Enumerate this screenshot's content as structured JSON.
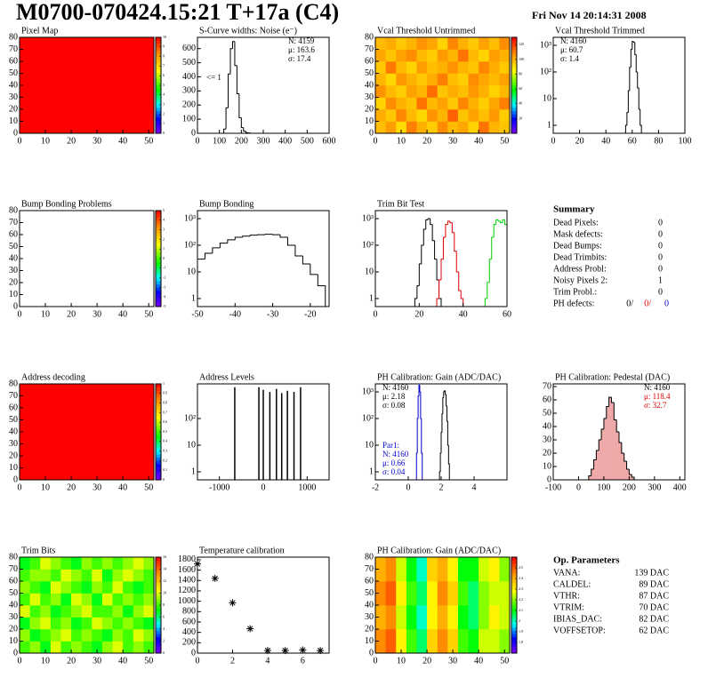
{
  "header": {
    "title": "M0700-070424.15:21 T+17a (C4)",
    "date": "Fri Nov 14 20:14:31 2008"
  },
  "chart_data": [
    {
      "type": "heatmap",
      "title": "Pixel Map",
      "xlim": [
        0,
        52
      ],
      "ylim": [
        0,
        80
      ],
      "xticks": [
        0,
        10,
        20,
        30,
        40,
        50
      ],
      "yticks": [
        0,
        10,
        20,
        30,
        40,
        50,
        60,
        70,
        80
      ],
      "zlim": [
        0,
        10
      ],
      "zticks": [
        0,
        1,
        2,
        3,
        4,
        5,
        6,
        7,
        8,
        9,
        10
      ],
      "z": [
        [
          10
        ]
      ]
    },
    {
      "type": "histogram",
      "title": "S-Curve widths: Noise (e⁻)",
      "xlim": [
        0,
        600
      ],
      "ylim": [
        0,
        680
      ],
      "xticks": [
        0,
        100,
        200,
        300,
        400,
        500,
        600
      ],
      "yticks": [
        0,
        100,
        200,
        300,
        400,
        500,
        600
      ],
      "color": "#000000",
      "bins": [
        120,
        130,
        140,
        150,
        160,
        170,
        180,
        190,
        200,
        210,
        220,
        230,
        240
      ],
      "values": [
        30,
        180,
        420,
        600,
        650,
        480,
        280,
        110,
        40,
        15,
        5,
        2
      ],
      "annotation": "<= 1",
      "stats": [
        {
          "corner": "top-right",
          "color": "#000000",
          "lines": [
            "N: 4159",
            "μ: 163.6",
            "σ: 17.4"
          ]
        }
      ]
    },
    {
      "type": "heatmap",
      "title": "Vcal Threshold Untrimmed",
      "xlim": [
        0,
        52
      ],
      "ylim": [
        0,
        80
      ],
      "xticks": [
        0,
        10,
        20,
        30,
        40,
        50
      ],
      "yticks": [
        0,
        10,
        20,
        30,
        40,
        50,
        60,
        70,
        80
      ],
      "zlim": [
        0,
        130
      ],
      "zticks": [
        20,
        40,
        60,
        80,
        100,
        120
      ],
      "z": [
        [
          98,
          105,
          92,
          110,
          101,
          95,
          108,
          99,
          103,
          94,
          112,
          100,
          97
        ],
        [
          102,
          96,
          109,
          99,
          93,
          107,
          100,
          115,
          97,
          104,
          98,
          106,
          95
        ],
        [
          94,
          108,
          101,
          97,
          112,
          99,
          104,
          96,
          109,
          101,
          95,
          103,
          110
        ],
        [
          107,
          99,
          95,
          104,
          100,
          113,
          97,
          102,
          98,
          106,
          101,
          94,
          99
        ],
        [
          100,
          93,
          106,
          101,
          96,
          102,
          110,
          98,
          95,
          108,
          103,
          99,
          104
        ],
        [
          96,
          111,
          99,
          94,
          105,
          98,
          101,
          107,
          100,
          97,
          109,
          102,
          96
        ],
        [
          103,
          97,
          104,
          108,
          99,
          95,
          106,
          100,
          112,
          99,
          94,
          105,
          101
        ],
        [
          99,
          102,
          96,
          100,
          107,
          103,
          94,
          109,
          101,
          96,
          104,
          98,
          108
        ]
      ]
    },
    {
      "type": "histogram",
      "title": "Vcal Threshold Trimmed",
      "log_y": true,
      "xlim": [
        0,
        100
      ],
      "ylim": [
        0.5,
        2000
      ],
      "xticks": [
        0,
        20,
        40,
        60,
        80,
        100
      ],
      "yticks": [
        1,
        10,
        {
          "value": 100,
          "label": "10²"
        },
        {
          "value": 1000,
          "label": "10³"
        }
      ],
      "color": "#000000",
      "bins": [
        55,
        56,
        57,
        58,
        59,
        60,
        61,
        62,
        63,
        64,
        65,
        66,
        67
      ],
      "values": [
        1,
        3,
        20,
        150,
        700,
        1400,
        1300,
        450,
        100,
        25,
        4,
        1
      ],
      "stats": [
        {
          "corner": "top-left",
          "color": "#000000",
          "lines": [
            "N: 4160",
            "μ: 60.7",
            "σ:  1.4"
          ]
        }
      ]
    },
    {
      "type": "heatmap",
      "title": "Bump Bonding Problems",
      "xlim": [
        0,
        52
      ],
      "ylim": [
        0,
        80
      ],
      "xticks": [
        0,
        10,
        20,
        30,
        40,
        50
      ],
      "yticks": [
        0,
        10,
        20,
        30,
        40,
        50,
        60,
        70,
        80
      ],
      "zlim": [
        -5,
        5
      ],
      "zticks": [
        -5,
        -4,
        -3,
        -2,
        -1,
        0,
        1,
        2,
        3,
        4,
        5
      ],
      "z": []
    },
    {
      "type": "histogram",
      "title": "Bump Bonding",
      "log_y": true,
      "xlim": [
        -50,
        -15
      ],
      "ylim": [
        0.5,
        2000
      ],
      "xticks": [
        -50,
        -40,
        -30,
        -20
      ],
      "yticks": [
        1,
        10,
        {
          "value": 100,
          "label": "10²"
        },
        {
          "value": 1000,
          "label": "10³"
        }
      ],
      "color": "#000000",
      "bins": [
        -50,
        -48,
        -46,
        -44,
        -42,
        -40,
        -38,
        -36,
        -34,
        -32,
        -30,
        -28,
        -26,
        -24,
        -22,
        -20,
        -18,
        -16
      ],
      "values": [
        30,
        50,
        80,
        120,
        160,
        200,
        220,
        240,
        250,
        260,
        250,
        200,
        100,
        40,
        20,
        8,
        3
      ]
    },
    {
      "type": "histogram",
      "title": "Trim Bit Test",
      "log_y": true,
      "xlim": [
        0,
        60
      ],
      "ylim": [
        0.5,
        2000
      ],
      "xticks": [
        0,
        20,
        40,
        60
      ],
      "yticks": [
        1,
        10,
        {
          "value": 100,
          "label": "10²"
        },
        {
          "value": 1000,
          "label": "10³"
        }
      ],
      "series": [
        {
          "color": "#000000",
          "bins": [
            18,
            19,
            20,
            21,
            22,
            23,
            24,
            25,
            26,
            27,
            28,
            29,
            30
          ],
          "values": [
            1,
            3,
            20,
            100,
            400,
            900,
            1000,
            600,
            150,
            30,
            5,
            1
          ]
        },
        {
          "color": "#dd0000",
          "bins": [
            28,
            29,
            30,
            31,
            32,
            33,
            34,
            35,
            36,
            37,
            38,
            39,
            40
          ],
          "values": [
            1,
            5,
            30,
            200,
            600,
            800,
            700,
            300,
            60,
            10,
            2,
            1
          ]
        },
        {
          "color": "#00cc00",
          "bins": [
            50,
            51,
            52,
            53,
            54,
            55,
            56,
            57,
            58,
            59,
            60
          ],
          "values": [
            1,
            4,
            30,
            200,
            600,
            900,
            800,
            700,
            900,
            600
          ]
        }
      ]
    },
    {
      "type": "heatmap",
      "title": "Address decoding",
      "xlim": [
        0,
        52
      ],
      "ylim": [
        0,
        80
      ],
      "xticks": [
        0,
        10,
        20,
        30,
        40,
        50
      ],
      "yticks": [
        0,
        10,
        20,
        30,
        40,
        50,
        60,
        70,
        80
      ],
      "zlim": [
        0,
        1
      ],
      "zticks": [
        0,
        0.1,
        0.2,
        0.3,
        0.4,
        0.5,
        0.6,
        0.7,
        0.8,
        0.9,
        1
      ],
      "z": [
        [
          1
        ]
      ]
    },
    {
      "type": "needle",
      "title": "Address Levels",
      "log_y": true,
      "xlim": [
        -1500,
        1500
      ],
      "ylim": [
        0.5,
        2000
      ],
      "xticks": [
        -1000,
        0,
        1000
      ],
      "yticks": [
        1,
        10,
        {
          "value": 100,
          "label": "10²"
        }
      ],
      "color": "#000000",
      "x": [
        -650,
        -100,
        0,
        150,
        300,
        420,
        550,
        700,
        850
      ],
      "values": [
        1500,
        1500,
        1200,
        1000,
        1300,
        900,
        1100,
        1000,
        1500
      ]
    },
    {
      "type": "histogram",
      "title": "PH Calibration: Gain (ADC/DAC)",
      "log_y": true,
      "xlim": [
        -2,
        6
      ],
      "ylim": [
        0.5,
        2000
      ],
      "xticks": [
        -2,
        0,
        2,
        4
      ],
      "yticks": [
        1,
        10,
        {
          "value": 100,
          "label": "10²"
        },
        {
          "value": 1000,
          "label": "10³"
        }
      ],
      "series": [
        {
          "color": "#000000",
          "bins": [
            1.9,
            1.95,
            2.0,
            2.05,
            2.1,
            2.15,
            2.2,
            2.25,
            2.3,
            2.35,
            2.4,
            2.45,
            2.5
          ],
          "values": [
            1,
            5,
            30,
            150,
            600,
            1000,
            1100,
            800,
            300,
            80,
            10,
            2
          ]
        },
        {
          "color": "#0000cc",
          "bins": [
            0.5,
            0.55,
            0.6,
            0.65,
            0.7,
            0.75,
            0.8,
            0.85
          ],
          "values": [
            5,
            100,
            700,
            1800,
            1000,
            100,
            5
          ]
        }
      ],
      "stats": [
        {
          "corner": "top-left",
          "color": "#000000",
          "lines": [
            "N: 4160",
            "μ: 2.18",
            "σ: 0.08"
          ]
        },
        {
          "corner": "bottom-left",
          "color": "#0000cc",
          "lines": [
            "Par1:",
            "N: 4160",
            "μ: 0.66",
            "σ: 0.04"
          ]
        }
      ]
    },
    {
      "type": "histogram",
      "title": "PH Calibration: Pedestal (DAC)",
      "xlim": [
        -100,
        420
      ],
      "ylim": [
        0,
        72
      ],
      "xticks": [
        -100,
        0,
        100,
        200,
        300,
        400
      ],
      "yticks": [
        0,
        10,
        20,
        30,
        40,
        50,
        60,
        70
      ],
      "color": "#000000",
      "fill": "#e06060",
      "bins": [
        40,
        50,
        60,
        70,
        80,
        90,
        100,
        110,
        120,
        130,
        140,
        150,
        160,
        170,
        180,
        190,
        200,
        210,
        220
      ],
      "values": [
        3,
        8,
        15,
        22,
        30,
        38,
        46,
        55,
        62,
        58,
        45,
        36,
        28,
        20,
        14,
        8,
        4,
        2
      ],
      "stats": [
        {
          "corner": "top-right",
          "color": "#000000",
          "lines": [
            "N: 4160"
          ]
        },
        {
          "corner": "top-right",
          "color": "#dd0000",
          "lines": [
            "μ: 118.4",
            "σ: 32.7"
          ]
        }
      ]
    },
    {
      "type": "heatmap",
      "title": "Trim Bits",
      "xlim": [
        0,
        52
      ],
      "ylim": [
        0,
        80
      ],
      "xticks": [
        0,
        10,
        20,
        30,
        40,
        50
      ],
      "yticks": [
        0,
        10,
        20,
        30,
        40,
        50,
        60,
        70,
        80
      ],
      "zlim": [
        0,
        16
      ],
      "zticks": [
        0,
        2,
        4,
        6,
        8,
        10,
        12,
        14,
        16
      ],
      "z": [
        [
          8,
          9,
          7,
          10,
          8,
          9,
          8,
          7,
          9,
          10,
          8,
          9,
          8
        ],
        [
          9,
          7,
          8,
          9,
          10,
          8,
          9,
          8,
          7,
          9,
          8,
          10,
          9
        ],
        [
          7,
          9,
          10,
          8,
          9,
          7,
          8,
          10,
          9,
          8,
          9,
          8,
          7
        ],
        [
          10,
          8,
          9,
          7,
          8,
          9,
          10,
          8,
          8,
          9,
          7,
          9,
          10
        ],
        [
          8,
          10,
          8,
          9,
          7,
          10,
          9,
          7,
          10,
          8,
          9,
          8,
          9
        ],
        [
          9,
          8,
          7,
          10,
          9,
          8,
          7,
          9,
          8,
          10,
          8,
          7,
          8
        ],
        [
          8,
          9,
          9,
          8,
          10,
          9,
          8,
          10,
          7,
          9,
          10,
          9,
          8
        ],
        [
          7,
          8,
          10,
          9,
          8,
          7,
          9,
          8,
          9,
          8,
          9,
          10,
          9
        ]
      ]
    },
    {
      "type": "scatter",
      "title": "Temperature calibration",
      "xlim": [
        0,
        7.5
      ],
      "ylim": [
        0,
        1850
      ],
      "xticks": [
        0,
        2,
        4,
        6
      ],
      "yticks": [
        0,
        200,
        400,
        600,
        800,
        1000,
        1200,
        1400,
        1600,
        1800
      ],
      "color": "#000000",
      "x": [
        0,
        1,
        2,
        3,
        4,
        5,
        6,
        7
      ],
      "values": [
        1720,
        1440,
        970,
        470,
        50,
        50,
        60,
        50
      ]
    },
    {
      "type": "heatmap",
      "title": "PH Calibration: Gain (ADC/DAC)",
      "xlim": [
        0,
        52
      ],
      "ylim": [
        0,
        80
      ],
      "xticks": [
        0,
        10,
        20,
        30,
        40,
        50
      ],
      "yticks": [
        0,
        10,
        20,
        30,
        40,
        50,
        60,
        70,
        80
      ],
      "zlim": [
        1.7,
        2.6
      ],
      "zticks": [
        1.8,
        1.9,
        2,
        2.1,
        2.2,
        2.3,
        2.4,
        2.5
      ],
      "z": [
        [
          2.45,
          2.5,
          2.3,
          2.15,
          2.05,
          2.35,
          2.45,
          2.35,
          2.15,
          2.1,
          2.25,
          2.25,
          2.2
        ],
        [
          2.4,
          2.45,
          2.25,
          2.1,
          2.0,
          2.3,
          2.4,
          2.3,
          2.1,
          2.05,
          2.2,
          2.3,
          2.25
        ],
        [
          2.45,
          2.5,
          2.3,
          2.15,
          2.05,
          2.3,
          2.45,
          2.35,
          2.15,
          2.05,
          2.2,
          2.25,
          2.25
        ],
        [
          2.4,
          2.45,
          2.25,
          2.1,
          2.0,
          2.35,
          2.4,
          2.3,
          2.1,
          2.1,
          2.25,
          2.3,
          2.2
        ]
      ]
    }
  ],
  "summary": {
    "title": "Summary",
    "rows": [
      {
        "label": "Dead Pixels:",
        "value": 0
      },
      {
        "label": "Mask defects:",
        "value": 0
      },
      {
        "label": "Dead Bumps:",
        "value": 0
      },
      {
        "label": "Dead Trimbits:",
        "value": 0
      },
      {
        "label": "Address Probl:",
        "value": 0
      },
      {
        "label": "Noisy Pixels 2:",
        "value": 1
      },
      {
        "label": "Trim Probl.:",
        "value": 0
      }
    ],
    "ph_defects": {
      "label": "PH defects:",
      "parts": [
        {
          "text": "0/",
          "color": "#000000"
        },
        {
          "text": "0/",
          "color": "#dd0000"
        },
        {
          "text": "0",
          "color": "#0000cc"
        }
      ]
    }
  },
  "parameters": {
    "title": "Op. Parameters",
    "rows": [
      {
        "label": "VANA:",
        "value": "139 DAC"
      },
      {
        "label": "CALDEL:",
        "value": "89 DAC"
      },
      {
        "label": "VTHR:",
        "value": "87 DAC"
      },
      {
        "label": "VTRIM:",
        "value": "70 DAC"
      },
      {
        "label": "IBIAS_DAC:",
        "value": "82 DAC"
      },
      {
        "label": "VOFFSETOP:",
        "value": "62 DAC"
      }
    ]
  }
}
